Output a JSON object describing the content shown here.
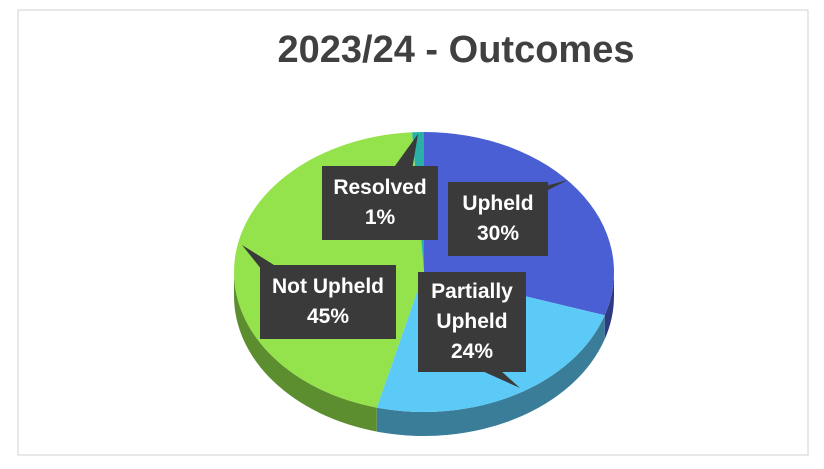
{
  "chart_data": {
    "type": "pie",
    "title": "2023/24 - Outcomes",
    "categories": [
      "Upheld",
      "Partially Upheld",
      "Not Upheld",
      "Resolved"
    ],
    "values": [
      30,
      24,
      45,
      1
    ],
    "value_labels": [
      "30%",
      "24%",
      "45%",
      "1%"
    ],
    "colors": [
      "#4a5fd4",
      "#5ccaf6",
      "#95e34c",
      "#2bb0a8"
    ]
  }
}
